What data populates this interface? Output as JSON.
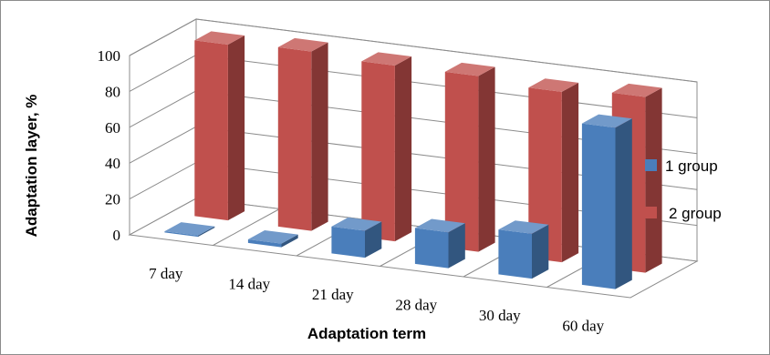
{
  "chart_data": {
    "type": "bar",
    "title": "",
    "xlabel": "Adaptation term",
    "ylabel": "Adaptation layer, %",
    "categories": [
      "7 day",
      "14 day",
      "21 day",
      "28 day",
      "30 day",
      "60 day"
    ],
    "ylim": [
      0,
      100
    ],
    "yticks": [
      0,
      20,
      40,
      60,
      80,
      100
    ],
    "grid": true,
    "legend_position": "right",
    "style": "3d-clustered-column",
    "series": [
      {
        "name": "1 group",
        "color": "#4a7ebb",
        "values": [
          0,
          2,
          15,
          20,
          25,
          90
        ]
      },
      {
        "name": "2 group",
        "color": "#c0504d",
        "values": [
          98,
          100,
          98,
          98,
          95,
          98
        ]
      }
    ]
  }
}
